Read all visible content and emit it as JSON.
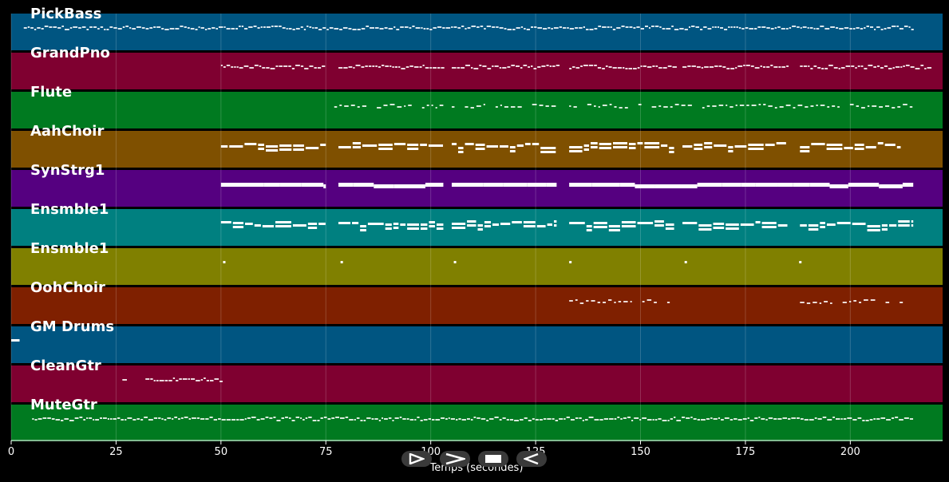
{
  "chart_data": {
    "type": "piano-roll",
    "xlabel": "Temps (secondes)",
    "xlim": [
      0,
      222
    ],
    "x_ticks": [
      0,
      25,
      50,
      75,
      100,
      125,
      150,
      175,
      200
    ],
    "grid": true,
    "tracks": [
      {
        "name": "PickBass",
        "color": "#005581",
        "segments": [
          [
            3,
            215
          ]
        ],
        "style": "dense"
      },
      {
        "name": "GrandPno",
        "color": "#7f0030",
        "segments": [
          [
            50,
            75
          ],
          [
            78,
            103
          ],
          [
            105,
            130
          ],
          [
            133,
            158
          ],
          [
            160,
            185
          ],
          [
            188,
            219
          ]
        ],
        "style": "dense"
      },
      {
        "name": "Flute",
        "color": "#007a20",
        "segments": [
          [
            77,
            103
          ],
          [
            105,
            130
          ],
          [
            133,
            215
          ]
        ],
        "style": "sparse"
      },
      {
        "name": "AahChoir",
        "color": "#7f5000",
        "segments": [
          [
            50,
            75
          ],
          [
            78,
            103
          ],
          [
            105,
            130
          ],
          [
            133,
            158
          ],
          [
            160,
            185
          ],
          [
            188,
            212
          ]
        ],
        "style": "thick"
      },
      {
        "name": "SynStrg1",
        "color": "#550080",
        "segments": [
          [
            50,
            75
          ],
          [
            78,
            103
          ],
          [
            105,
            130
          ],
          [
            133,
            215
          ]
        ],
        "style": "bar"
      },
      {
        "name": "Ensmble1",
        "color": "#008080",
        "segments": [
          [
            50,
            75
          ],
          [
            78,
            103
          ],
          [
            105,
            130
          ],
          [
            133,
            158
          ],
          [
            160,
            185
          ],
          [
            188,
            215
          ]
        ],
        "style": "thick"
      },
      {
        "name": "Ensmble1",
        "color": "#808000",
        "segments": [
          [
            50.5,
            51
          ],
          [
            78.5,
            79
          ],
          [
            105.5,
            106
          ],
          [
            133,
            133.5
          ],
          [
            160.5,
            161
          ],
          [
            187.8,
            188.2
          ]
        ],
        "style": "dots"
      },
      {
        "name": "OohChoir",
        "color": "#7f2000",
        "segments": [
          [
            133,
            158
          ],
          [
            188,
            212
          ]
        ],
        "style": "sparse"
      },
      {
        "name": "GM Drums",
        "color": "#005581",
        "segments": [
          [
            0,
            2
          ]
        ],
        "style": "dots"
      },
      {
        "name": "CleanGtr",
        "color": "#7f0030",
        "segments": [
          [
            26.5,
            27.5
          ],
          [
            32,
            50
          ]
        ],
        "style": "dense"
      },
      {
        "name": "MuteGtr",
        "color": "#007a20",
        "segments": [
          [
            5,
            215
          ]
        ],
        "style": "dense"
      }
    ]
  },
  "controls": [
    {
      "name": "play-button",
      "icon": "play-icon"
    },
    {
      "name": "forward-button",
      "icon": "chevron-right-icon"
    },
    {
      "name": "stop-button",
      "icon": "stop-icon"
    },
    {
      "name": "rewind-button",
      "icon": "rewind-icon"
    }
  ]
}
